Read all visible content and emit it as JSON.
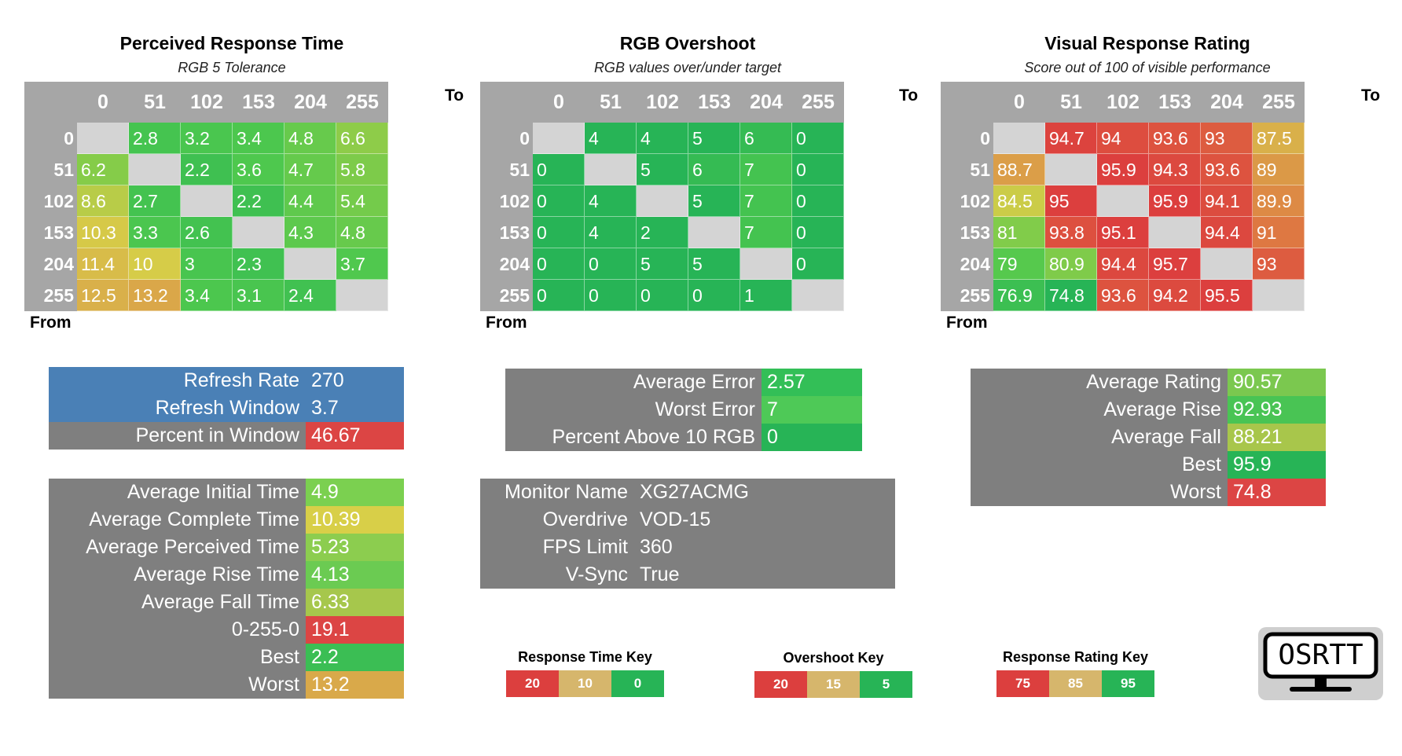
{
  "axis_labels": {
    "to": "To",
    "from": "From"
  },
  "panels": {
    "prt": {
      "title": "Perceived Response Time",
      "subtitle": "RGB 5 Tolerance"
    },
    "ovs": {
      "title": "RGB Overshoot",
      "subtitle": "RGB values over/under target"
    },
    "vrr": {
      "title": "Visual Response Rating",
      "subtitle": "Score out of 100 of visible performance"
    }
  },
  "chart_data": [
    {
      "type": "heatmap",
      "id": "perceived_response_time",
      "title": "Perceived Response Time",
      "subtitle": "RGB 5 Tolerance",
      "xlabel": "To",
      "ylabel": "From",
      "x": [
        "0",
        "51",
        "102",
        "153",
        "204",
        "255"
      ],
      "y": [
        "0",
        "51",
        "102",
        "153",
        "204",
        "255"
      ],
      "values": [
        [
          null,
          2.8,
          3.2,
          3.4,
          4.8,
          6.6
        ],
        [
          6.2,
          null,
          2.2,
          3.6,
          4.7,
          5.8
        ],
        [
          8.6,
          2.7,
          null,
          2.2,
          4.4,
          5.4
        ],
        [
          10.3,
          3.3,
          2.6,
          null,
          4.3,
          4.8
        ],
        [
          11.4,
          10,
          3,
          2.3,
          null,
          3.7
        ],
        [
          12.5,
          13.2,
          3.4,
          3.1,
          2.4,
          null
        ]
      ],
      "color_scale": {
        "stops": [
          0,
          10,
          20
        ],
        "colors": [
          "#27b456",
          "#d6b66c",
          "#dc3f3e"
        ]
      }
    },
    {
      "type": "heatmap",
      "id": "rgb_overshoot",
      "title": "RGB Overshoot",
      "subtitle": "RGB values over/under target",
      "xlabel": "To",
      "ylabel": "From",
      "x": [
        "0",
        "51",
        "102",
        "153",
        "204",
        "255"
      ],
      "y": [
        "0",
        "51",
        "102",
        "153",
        "204",
        "255"
      ],
      "values": [
        [
          null,
          4,
          4,
          5,
          6,
          0
        ],
        [
          0,
          null,
          5,
          6,
          7,
          0
        ],
        [
          0,
          4,
          null,
          5,
          7,
          0
        ],
        [
          0,
          4,
          2,
          null,
          7,
          0
        ],
        [
          0,
          0,
          5,
          5,
          null,
          0
        ],
        [
          0,
          0,
          0,
          0,
          1,
          null
        ]
      ],
      "color_scale": {
        "stops": [
          5,
          15,
          20
        ],
        "colors": [
          "#27b456",
          "#d6b66c",
          "#dc3f3e"
        ]
      }
    },
    {
      "type": "heatmap",
      "id": "visual_response_rating",
      "title": "Visual Response Rating",
      "subtitle": "Score out of 100 of visible performance",
      "xlabel": "To",
      "ylabel": "From",
      "x": [
        "0",
        "51",
        "102",
        "153",
        "204",
        "255"
      ],
      "y": [
        "0",
        "51",
        "102",
        "153",
        "204",
        "255"
      ],
      "values": [
        [
          null,
          94.7,
          94,
          93.6,
          93,
          87.5
        ],
        [
          88.7,
          null,
          95.9,
          94.3,
          93.6,
          89
        ],
        [
          84.5,
          95,
          null,
          95.9,
          94.1,
          89.9
        ],
        [
          81,
          93.8,
          95.1,
          null,
          94.4,
          91
        ],
        [
          79,
          80.9,
          94.4,
          95.7,
          null,
          93
        ],
        [
          76.9,
          74.8,
          93.6,
          94.2,
          95.5,
          null
        ]
      ],
      "color_scale": {
        "stops": [
          75,
          85,
          95
        ],
        "colors": [
          "#dc3f3e",
          "#d6b66c",
          "#27b456"
        ]
      }
    }
  ],
  "refresh_stats": [
    {
      "label": "Refresh Rate",
      "value": "270",
      "label_color": "#4a80b6",
      "value_color": "#4a80b6"
    },
    {
      "label": "Refresh Window",
      "value": "3.7",
      "label_color": "#4a80b6",
      "value_color": "#4a80b6"
    },
    {
      "label": "Percent in Window",
      "value": "46.67",
      "label_color": "#7f7f7f",
      "value_color": "#dc4544"
    }
  ],
  "time_stats": [
    {
      "label": "Average Initial Time",
      "value": "4.9",
      "value_color": "#7bd050"
    },
    {
      "label": "Average Complete Time",
      "value": "10.39",
      "value_color": "#d8cf48"
    },
    {
      "label": "Average Perceived Time",
      "value": "5.23",
      "value_color": "#8ccd4f"
    },
    {
      "label": "Average Rise Time",
      "value": "4.13",
      "value_color": "#6bcb52"
    },
    {
      "label": "Average Fall Time",
      "value": "6.33",
      "value_color": "#a6c74c"
    },
    {
      "label": "0-255-0",
      "value": "19.1",
      "value_color": "#dc4544"
    },
    {
      "label": "Best",
      "value": "2.2",
      "value_color": "#3bbe54"
    },
    {
      "label": "Worst",
      "value": "13.2",
      "value_color": "#d9a94a"
    }
  ],
  "error_stats": [
    {
      "label": "Average Error",
      "value": "2.57",
      "value_color": "#33bf57"
    },
    {
      "label": "Worst Error",
      "value": "7",
      "value_color": "#4ec957"
    },
    {
      "label": "Percent Above 10 RGB",
      "value": "0",
      "value_color": "#27b456"
    }
  ],
  "monitor_info": [
    {
      "label": "Monitor Name",
      "value": "XG27ACMG"
    },
    {
      "label": "Overdrive",
      "value": "VOD-15"
    },
    {
      "label": "FPS Limit",
      "value": "360"
    },
    {
      "label": "V-Sync",
      "value": "True"
    }
  ],
  "rating_stats": [
    {
      "label": "Average Rating",
      "value": "90.57",
      "value_color": "#7bc84f"
    },
    {
      "label": "Average Rise",
      "value": "92.93",
      "value_color": "#49c454"
    },
    {
      "label": "Average Fall",
      "value": "88.21",
      "value_color": "#a8c64b"
    },
    {
      "label": "Best",
      "value": "95.9",
      "value_color": "#27b456"
    },
    {
      "label": "Worst",
      "value": "74.8",
      "value_color": "#dc4544"
    }
  ],
  "keys": [
    {
      "title": "Response Time Key",
      "cells": [
        {
          "text": "20",
          "color": "#dc3f3e"
        },
        {
          "text": "10",
          "color": "#d6b66c"
        },
        {
          "text": "0",
          "color": "#27b456"
        }
      ]
    },
    {
      "title": "Overshoot Key",
      "cells": [
        {
          "text": "20",
          "color": "#dc3f3e"
        },
        {
          "text": "15",
          "color": "#d6b66c"
        },
        {
          "text": "5",
          "color": "#27b456"
        }
      ]
    },
    {
      "title": "Response Rating Key",
      "cells": [
        {
          "text": "75",
          "color": "#dc3f3e"
        },
        {
          "text": "85",
          "color": "#d6b66c"
        },
        {
          "text": "95",
          "color": "#27b456"
        }
      ]
    }
  ],
  "logo": {
    "text": "OSRTT",
    "icon": "monitor-icon"
  }
}
